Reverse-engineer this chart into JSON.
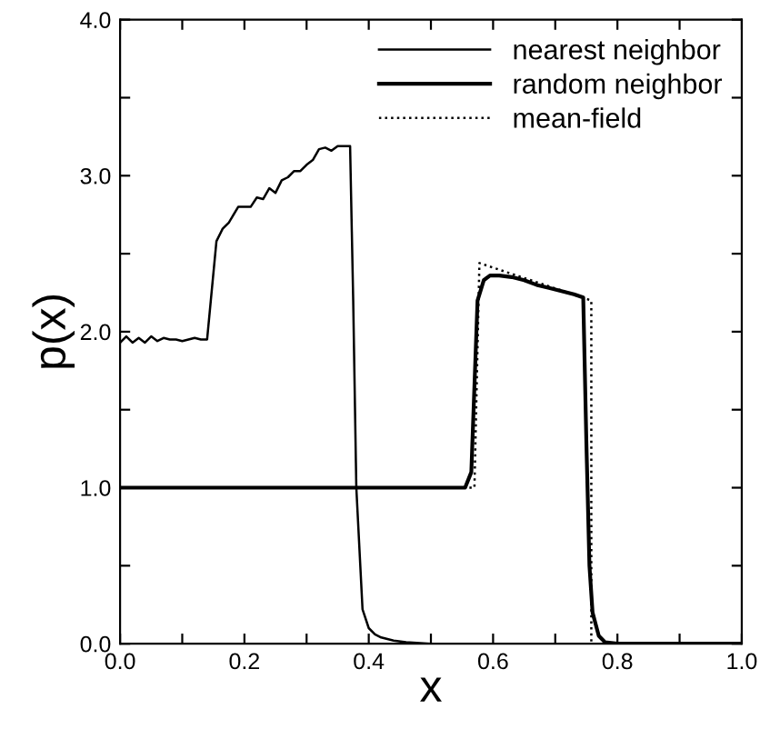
{
  "chart_data": {
    "type": "line",
    "xlabel": "x",
    "ylabel": "p(x)",
    "xlim": [
      0,
      1
    ],
    "ylim": [
      0,
      4
    ],
    "xticks": [
      {
        "value": 0,
        "label": "0.0"
      },
      {
        "value": 0.1,
        "label": null
      },
      {
        "value": 0.2,
        "label": "0.2"
      },
      {
        "value": 0.3,
        "label": null
      },
      {
        "value": 0.4,
        "label": "0.4"
      },
      {
        "value": 0.5,
        "label": null
      },
      {
        "value": 0.6,
        "label": "0.6"
      },
      {
        "value": 0.7,
        "label": null
      },
      {
        "value": 0.8,
        "label": "0.8"
      },
      {
        "value": 0.9,
        "label": null
      },
      {
        "value": 1,
        "label": "1.0"
      }
    ],
    "yticks": [
      {
        "value": 0,
        "label": "0.0"
      },
      {
        "value": 0.5,
        "label": null
      },
      {
        "value": 1,
        "label": "1.0"
      },
      {
        "value": 1.5,
        "label": null
      },
      {
        "value": 2,
        "label": "2.0"
      },
      {
        "value": 2.5,
        "label": null
      },
      {
        "value": 3,
        "label": "3.0"
      },
      {
        "value": 3.5,
        "label": null
      },
      {
        "value": 4,
        "label": "4.0"
      }
    ],
    "grid": false,
    "legend": "top right",
    "marker": "none",
    "series": [
      {
        "name": "nearest neighbor",
        "color": "#000000",
        "line_style": "solid",
        "x": [
          0,
          0.01,
          0.02,
          0.03,
          0.04,
          0.05,
          0.06,
          0.07,
          0.08,
          0.09,
          0.1,
          0.11,
          0.12,
          0.13,
          0.14,
          0.155,
          0.165,
          0.175,
          0.19,
          0.2,
          0.21,
          0.22,
          0.23,
          0.24,
          0.25,
          0.26,
          0.27,
          0.28,
          0.29,
          0.3,
          0.31,
          0.32,
          0.33,
          0.34,
          0.35,
          0.36,
          0.37,
          0.375,
          0.38,
          0.39,
          0.4,
          0.41,
          0.42,
          0.44,
          0.46,
          0.5,
          0.6,
          0.8,
          1.0
        ],
        "values": [
          1.93,
          1.97,
          1.93,
          1.96,
          1.93,
          1.97,
          1.94,
          1.96,
          1.95,
          1.95,
          1.94,
          1.95,
          1.96,
          1.95,
          1.95,
          2.58,
          2.66,
          2.7,
          2.8,
          2.8,
          2.8,
          2.86,
          2.85,
          2.92,
          2.89,
          2.97,
          2.99,
          3.03,
          3.03,
          3.07,
          3.1,
          3.17,
          3.18,
          3.16,
          3.19,
          3.19,
          3.19,
          2.2,
          1.0,
          0.22,
          0.1,
          0.06,
          0.04,
          0.02,
          0.01,
          0.0,
          0.0,
          0.0,
          0.0
        ]
      },
      {
        "name": "random neighbor",
        "color": "#000000",
        "line_style": "solid",
        "x": [
          0,
          0.1,
          0.2,
          0.3,
          0.4,
          0.5,
          0.555,
          0.565,
          0.575,
          0.585,
          0.595,
          0.61,
          0.63,
          0.65,
          0.67,
          0.69,
          0.71,
          0.73,
          0.745,
          0.75,
          0.755,
          0.76,
          0.77,
          0.78,
          0.8,
          0.9,
          1.0
        ],
        "values": [
          1.0,
          1.0,
          1.0,
          1.0,
          1.0,
          1.0,
          1.0,
          1.1,
          2.2,
          2.33,
          2.36,
          2.36,
          2.35,
          2.33,
          2.3,
          2.28,
          2.26,
          2.24,
          2.22,
          1.3,
          0.5,
          0.2,
          0.05,
          0.01,
          0.0,
          0.0,
          0.0
        ]
      },
      {
        "name": "mean-field",
        "color": "#000000",
        "line_style": "dotted",
        "x": [
          0,
          0.2,
          0.4,
          0.57,
          0.578,
          0.758,
          0.758,
          0.8,
          1.0
        ],
        "values": [
          1.0,
          1.0,
          1.0,
          1.0,
          2.44,
          2.2,
          0.0,
          0.0,
          0.0
        ]
      }
    ]
  }
}
